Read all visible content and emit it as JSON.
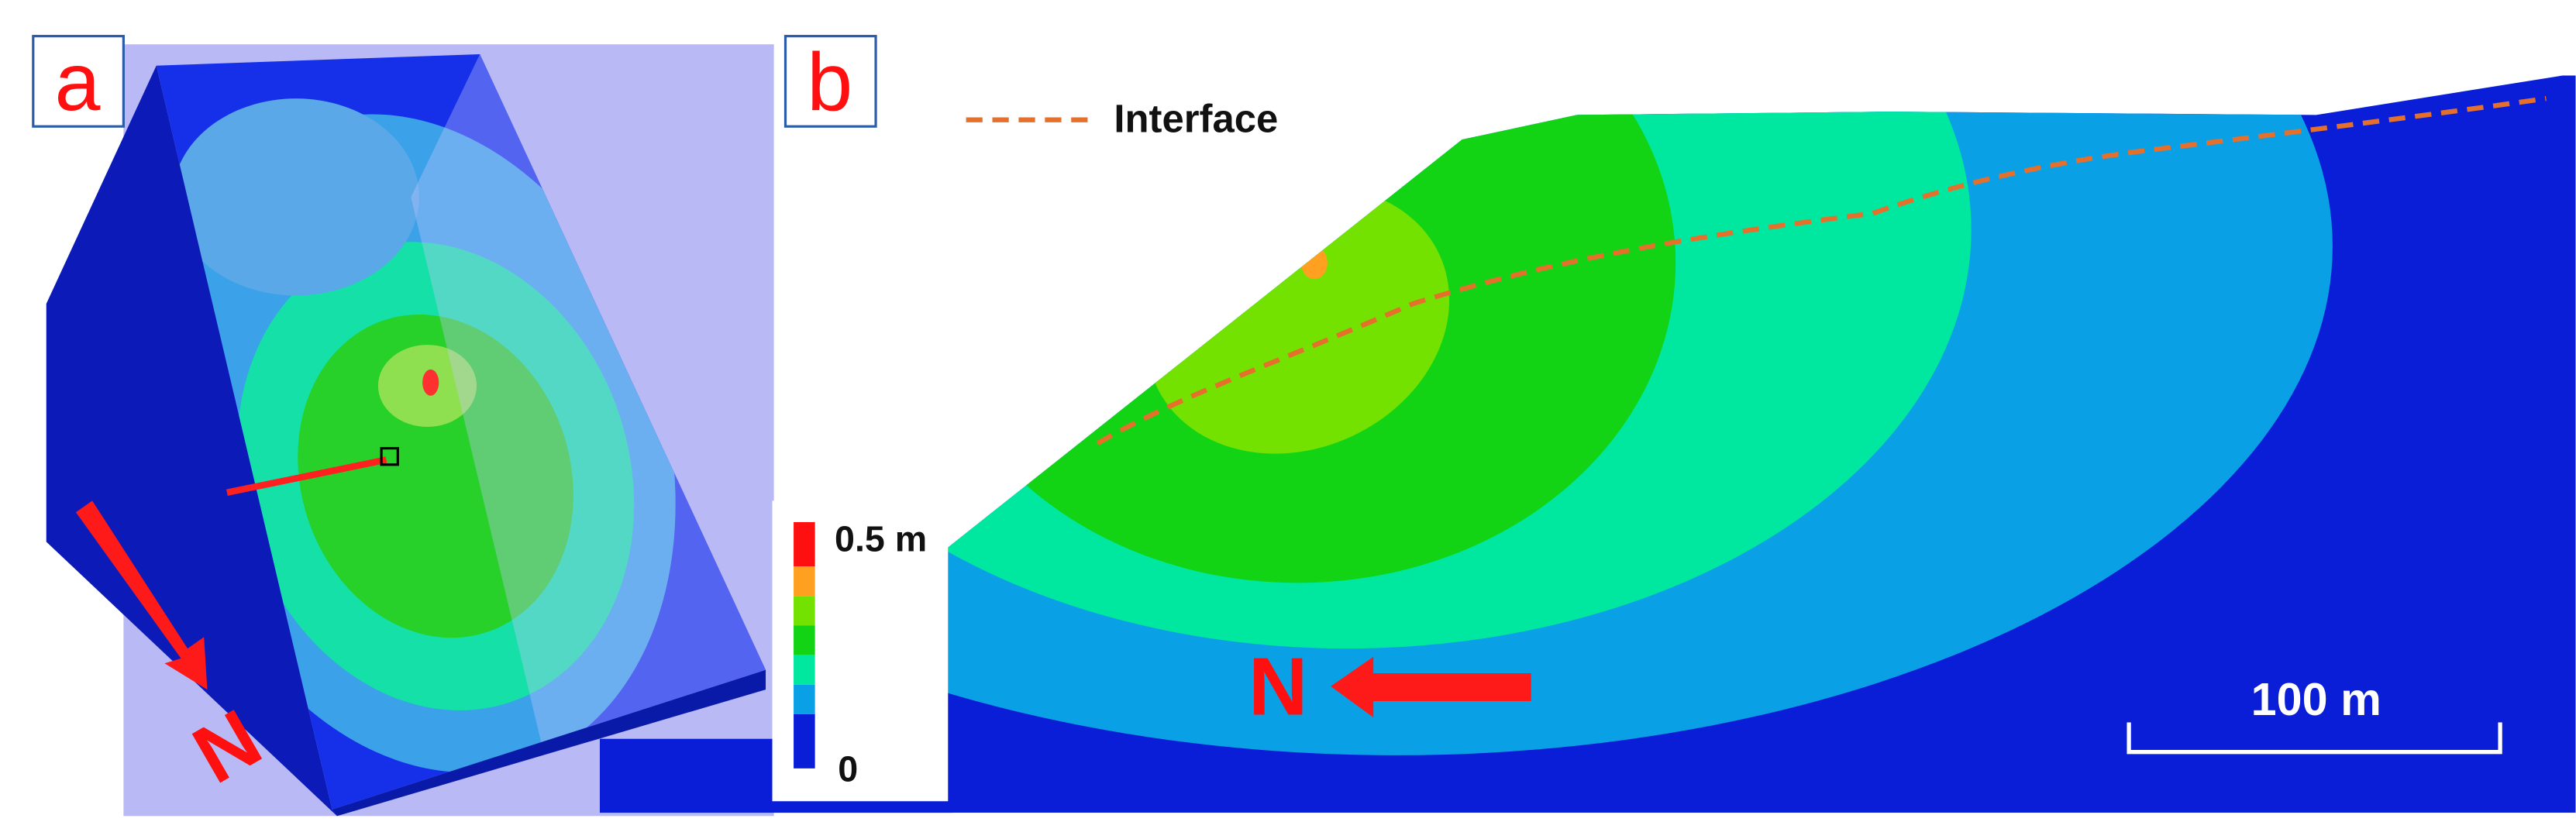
{
  "panels": [
    {
      "label": "a",
      "north": "N"
    },
    {
      "label": "b",
      "legend": {
        "interface": "Interface"
      },
      "colorbar": {
        "max": "0.5 m",
        "min": "0"
      },
      "north": "N",
      "scale_bar": "100 m"
    }
  ]
}
